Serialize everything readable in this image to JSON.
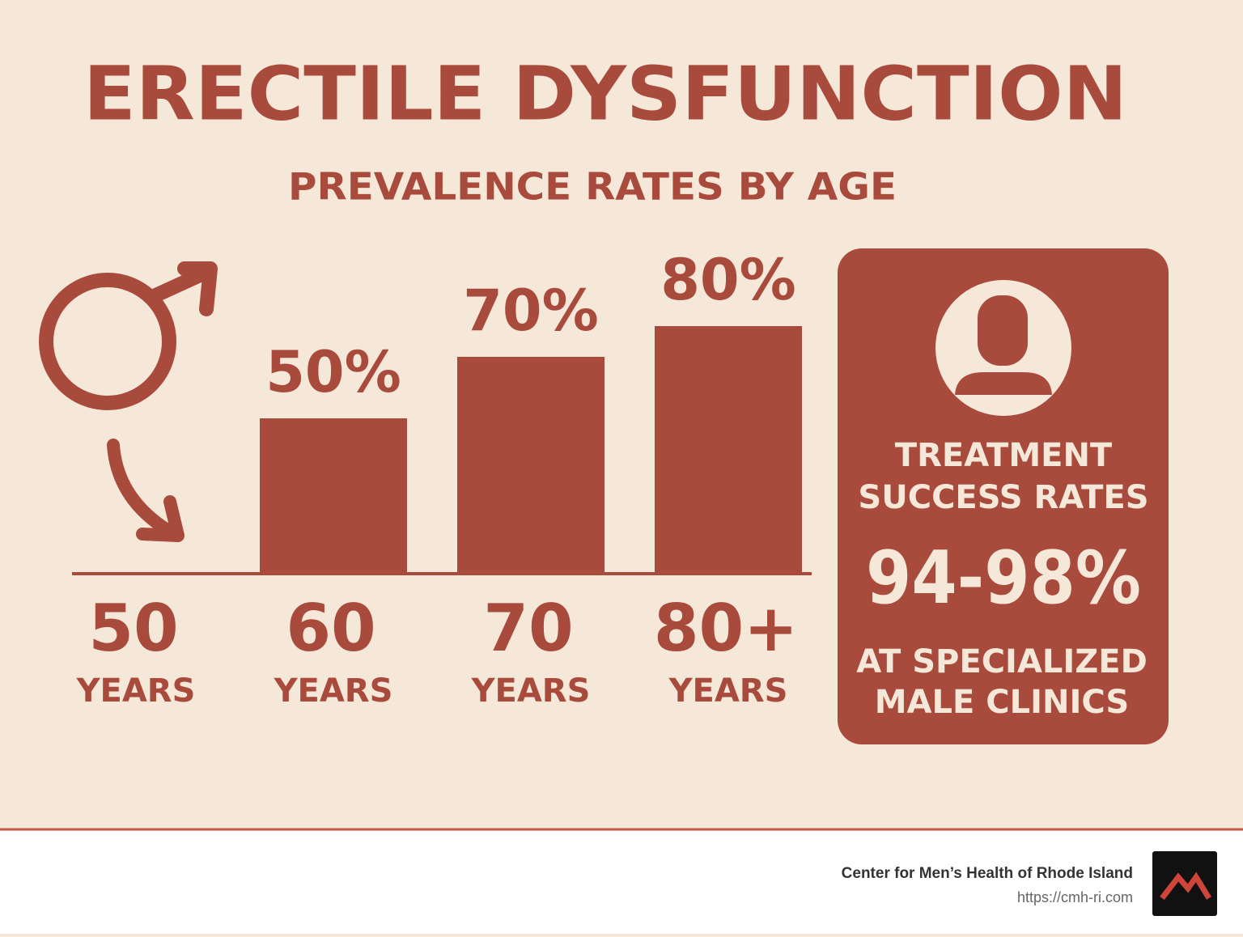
{
  "chart_data": {
    "type": "bar",
    "title": "ERECTILE DYSFUNCTION",
    "subtitle": "PREVALENCE RATES BY AGE",
    "categories": [
      "50",
      "60",
      "70",
      "80+"
    ],
    "category_sublabels": [
      "YEARS",
      "YEARS",
      "YEARS",
      "YEARS"
    ],
    "values": [
      null,
      50,
      70,
      80
    ],
    "value_labels": [
      null,
      "50%",
      "70%",
      "80%"
    ],
    "color": "#a84a3c"
  },
  "callout": {
    "heading": [
      "TREATMENT",
      "SUCCESS RATES"
    ],
    "rate": "94-98%",
    "note": [
      "AT SPECIALIZED",
      "MALE CLINICS"
    ]
  },
  "footer": {
    "organization": "Center for Men’s Health of Rhode Island",
    "url": "https://cmh-ri.com"
  }
}
